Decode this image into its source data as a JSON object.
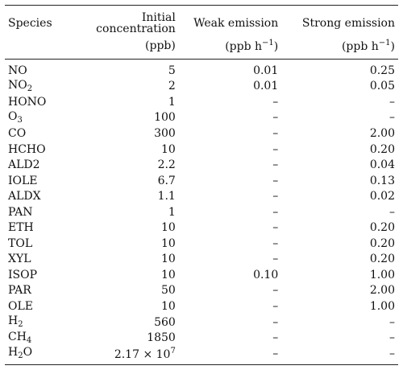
{
  "table": {
    "headers": {
      "species": "Species",
      "initial": "Initial concentration",
      "initial_unit": "(ppb)",
      "weak": "Weak emission",
      "weak_unit_base": "(ppb h",
      "weak_unit_sup": "−1",
      "weak_unit_close": ")",
      "strong": "Strong emission",
      "strong_unit_base": "(ppb h",
      "strong_unit_sup": "−1",
      "strong_unit_close": ")"
    },
    "rows": [
      {
        "base": "NO",
        "sub": "",
        "initial": "5",
        "weak": "0.01",
        "strong": "0.25"
      },
      {
        "base": "NO",
        "sub": "2",
        "initial": "2",
        "weak": "0.01",
        "strong": "0.05"
      },
      {
        "base": "HONO",
        "sub": "",
        "initial": "1",
        "weak": "–",
        "strong": "–"
      },
      {
        "base": "O",
        "sub": "3",
        "initial": "100",
        "weak": "–",
        "strong": "–"
      },
      {
        "base": "CO",
        "sub": "",
        "initial": "300",
        "weak": "–",
        "strong": "2.00"
      },
      {
        "base": "HCHO",
        "sub": "",
        "initial": "10",
        "weak": "–",
        "strong": "0.20"
      },
      {
        "base": "ALD2",
        "sub": "",
        "initial": "2.2",
        "weak": "–",
        "strong": "0.04"
      },
      {
        "base": "IOLE",
        "sub": "",
        "initial": "6.7",
        "weak": "–",
        "strong": "0.13"
      },
      {
        "base": "ALDX",
        "sub": "",
        "initial": "1.1",
        "weak": "–",
        "strong": "0.02"
      },
      {
        "base": "PAN",
        "sub": "",
        "initial": "1",
        "weak": "–",
        "strong": "–"
      },
      {
        "base": "ETH",
        "sub": "",
        "initial": "10",
        "weak": "–",
        "strong": "0.20"
      },
      {
        "base": "TOL",
        "sub": "",
        "initial": "10",
        "weak": "–",
        "strong": "0.20"
      },
      {
        "base": "XYL",
        "sub": "",
        "initial": "10",
        "weak": "–",
        "strong": "0.20"
      },
      {
        "base": "ISOP",
        "sub": "",
        "initial": "10",
        "weak": "0.10",
        "strong": "1.00"
      },
      {
        "base": "PAR",
        "sub": "",
        "initial": "50",
        "weak": "–",
        "strong": "2.00"
      },
      {
        "base": "OLE",
        "sub": "",
        "initial": "10",
        "weak": "–",
        "strong": "1.00"
      },
      {
        "base": "H",
        "sub": "2",
        "initial": "560",
        "weak": "–",
        "strong": "–"
      },
      {
        "base": "CH",
        "sub": "4",
        "initial": "1850",
        "weak": "–",
        "strong": "–"
      },
      {
        "base": "H",
        "sub": "2",
        "base2": "O",
        "initial": "2.17 × 10",
        "initial_sup": "7",
        "weak": "–",
        "strong": "–"
      }
    ]
  }
}
